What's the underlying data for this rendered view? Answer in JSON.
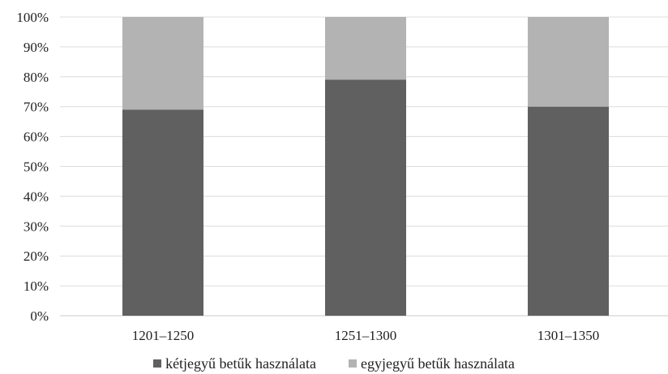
{
  "chart_data": {
    "type": "bar",
    "stacked": true,
    "percent": true,
    "categories": [
      "1201–1250",
      "1251–1300",
      "1301–1350"
    ],
    "series": [
      {
        "name": "kétjegyű betűk használata",
        "values": [
          69,
          79,
          70
        ],
        "color": "#606060"
      },
      {
        "name": "egyjegyű betűk használata",
        "values": [
          31,
          21,
          30
        ],
        "color": "#b3b3b3"
      }
    ],
    "yticks": [
      "0%",
      "10%",
      "20%",
      "30%",
      "40%",
      "50%",
      "60%",
      "70%",
      "80%",
      "90%",
      "100%"
    ],
    "ylim": [
      0,
      100
    ],
    "grid": true,
    "legend_position": "bottom"
  }
}
